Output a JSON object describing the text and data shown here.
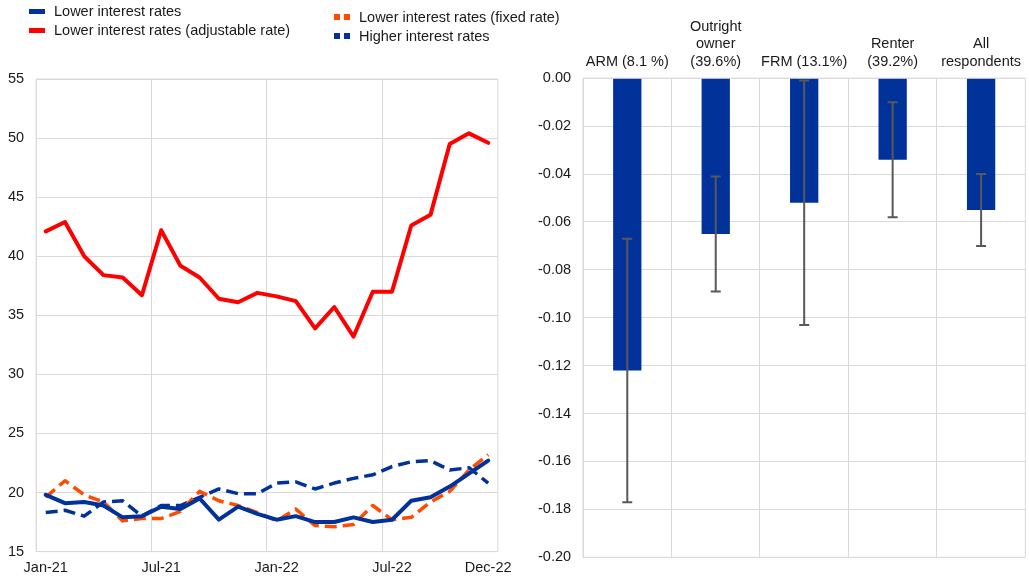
{
  "chart_data": [
    {
      "type": "line",
      "categories": [
        "Jan-21",
        null,
        null,
        null,
        null,
        null,
        "Jul-21",
        null,
        null,
        null,
        null,
        null,
        "Jan-22",
        null,
        null,
        null,
        null,
        null,
        "Jul-22",
        null,
        null,
        null,
        null,
        "Dec-22"
      ],
      "series": [
        {
          "name": "Lower interest rates",
          "color": "#003299",
          "values": [
            19.8,
            19.1,
            19.2,
            18.9,
            17.9,
            18.0,
            18.8,
            18.6,
            19.5,
            17.7,
            18.8,
            18.2,
            17.7,
            18.0,
            17.5,
            17.5,
            17.9,
            17.5,
            17.7,
            19.3,
            19.6,
            20.5,
            21.6,
            22.7
          ]
        },
        {
          "name": "Lower interest rates (adjustable rate)",
          "color": "#ff0000",
          "values": [
            42.1,
            42.9,
            40.0,
            38.4,
            38.2,
            36.7,
            42.2,
            39.2,
            38.2,
            36.4,
            36.1,
            36.9,
            36.6,
            36.2,
            33.9,
            35.7,
            33.2,
            37.0,
            37.0,
            42.6,
            43.5,
            49.5,
            50.4,
            49.6
          ]
        },
        {
          "name": "Lower interest rates (fixed rate)",
          "color": "#ff4b00",
          "line_style": "dashed",
          "values": [
            19.6,
            21.0,
            19.8,
            19.2,
            17.6,
            17.8,
            17.8,
            18.4,
            20.1,
            19.3,
            18.9,
            18.3,
            17.6,
            18.6,
            17.2,
            17.1,
            17.3,
            18.9,
            17.7,
            17.9,
            19.2,
            20.1,
            21.9,
            23.2
          ]
        },
        {
          "name": "Higher interest rates",
          "color": "#003299",
          "line_style": "dashed",
          "values": [
            18.3,
            18.5,
            18.0,
            19.2,
            19.3,
            18.0,
            18.9,
            18.9,
            19.6,
            20.3,
            19.9,
            19.9,
            20.8,
            20.9,
            20.3,
            20.8,
            21.2,
            21.5,
            22.2,
            22.6,
            22.7,
            21.9,
            22.1,
            20.8
          ]
        }
      ],
      "ylim": [
        15,
        55
      ],
      "yticks": [
        15,
        20,
        25,
        30,
        35,
        40,
        45,
        50,
        55
      ],
      "grid": true,
      "legend": "top"
    },
    {
      "type": "bar",
      "categories": [
        "ARM (8.1 %)",
        "Outright owner (39.6%)",
        "FRM (13.1%)",
        "Renter (39.2%)",
        "All respondents"
      ],
      "values": [
        -0.122,
        -0.065,
        -0.052,
        -0.034,
        -0.055
      ],
      "color": "#003299",
      "errors": [
        0.055,
        0.024,
        0.051,
        0.024,
        0.015
      ],
      "ylim": [
        -0.2,
        0
      ],
      "yticks": [
        {
          "value": 0,
          "label": "0.00"
        },
        {
          "value": -0.02,
          "label": "-0.02"
        },
        {
          "value": -0.04,
          "label": "-0.04"
        },
        {
          "value": -0.06,
          "label": "-0.06"
        },
        {
          "value": -0.08,
          "label": "-0.08"
        },
        {
          "value": -0.1,
          "label": "-0.10"
        },
        {
          "value": -0.12,
          "label": "-0.12"
        },
        {
          "value": -0.14,
          "label": "-0.14"
        },
        {
          "value": -0.16,
          "label": "-0.16"
        },
        {
          "value": -0.18,
          "label": "-0.18"
        },
        {
          "value": -0.2,
          "label": "-0.20"
        }
      ],
      "grid": true
    }
  ]
}
